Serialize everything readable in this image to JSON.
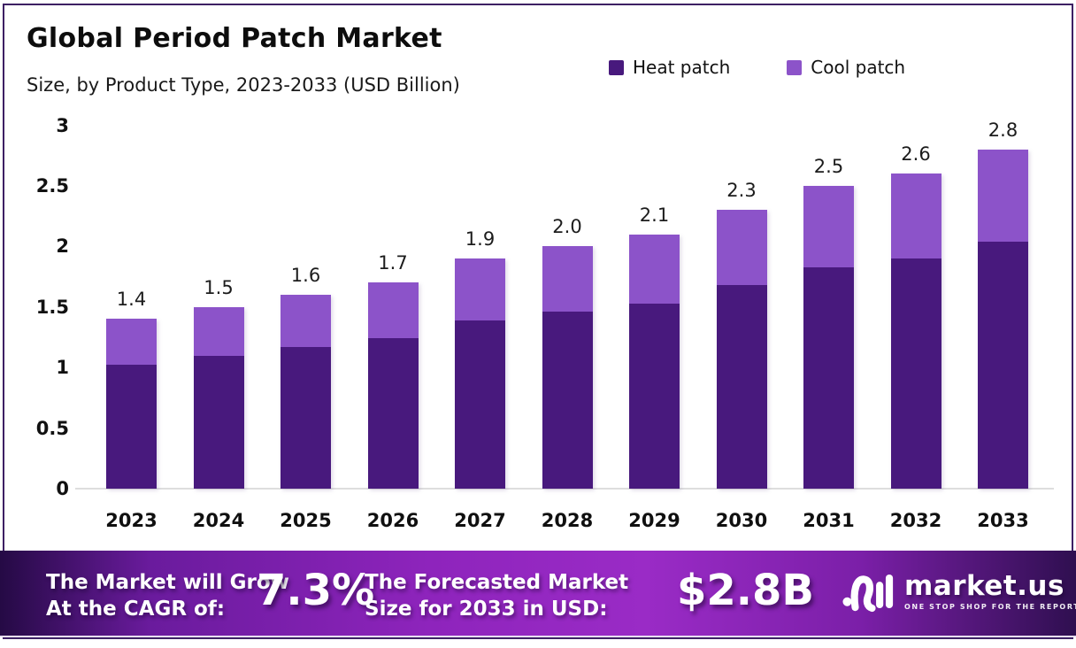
{
  "header": {
    "title": "Global Period Patch Market",
    "subtitle": "Size, by Product Type, 2023-2033 (USD Billion)"
  },
  "chart_data": {
    "type": "bar",
    "stacked": true,
    "title": "Global Period Patch Market",
    "subtitle": "Size, by Product Type, 2023-2033 (USD Billion)",
    "xlabel": "",
    "ylabel": "USD Billion",
    "ylim": [
      0,
      3
    ],
    "grid": false,
    "legend_position": "top-right",
    "categories": [
      "2023",
      "2024",
      "2025",
      "2026",
      "2027",
      "2028",
      "2029",
      "2030",
      "2031",
      "2032",
      "2033"
    ],
    "series": [
      {
        "name": "Heat patch",
        "color": "#48197d",
        "values": [
          1.02,
          1.1,
          1.17,
          1.24,
          1.39,
          1.46,
          1.53,
          1.68,
          1.83,
          1.9,
          2.04
        ]
      },
      {
        "name": "Cool patch",
        "color": "#8c53c9",
        "values": [
          0.38,
          0.4,
          0.43,
          0.46,
          0.51,
          0.54,
          0.57,
          0.62,
          0.67,
          0.7,
          0.76
        ]
      }
    ],
    "totals": [
      1.4,
      1.5,
      1.6,
      1.7,
      1.9,
      2.0,
      2.1,
      2.3,
      2.5,
      2.6,
      2.8
    ],
    "total_labels": [
      "1.4",
      "1.5",
      "1.6",
      "1.7",
      "1.9",
      "2.0",
      "2.1",
      "2.3",
      "2.5",
      "2.6",
      "2.8"
    ],
    "y_ticks": [
      "3",
      "2.5",
      "2",
      "1.5",
      "1",
      "0.5",
      "0"
    ]
  },
  "banner": {
    "cagr_label_line1": "The Market will Grow",
    "cagr_label_line2": "At the CAGR of:",
    "cagr_value": "7.3%",
    "forecast_label_line1": "The Forecasted Market",
    "forecast_label_line2": "Size for 2033 in USD:",
    "forecast_value": "$2.8B",
    "logo_text": "market.us",
    "logo_tagline": "ONE STOP SHOP FOR THE REPORTS"
  },
  "colors": {
    "heat_patch": "#48197d",
    "cool_patch": "#8c53c9",
    "frame_border": "#3d2064",
    "banner_center": "#9a2bc6",
    "banner_edge": "#250a45"
  },
  "icons": {
    "logo_icon": "market-us-logo-icon"
  }
}
